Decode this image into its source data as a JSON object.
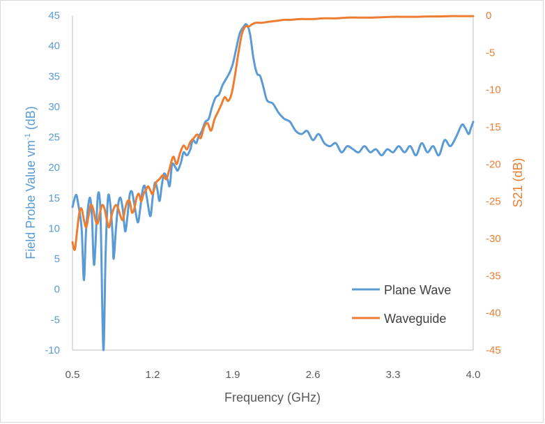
{
  "chart_data": {
    "type": "line",
    "title": "",
    "xlabel": "Frequency (GHz)",
    "ylabel_left": "Field Probe Value vm",
    "ylabel_left_sup": "-1",
    "ylabel_left_suffix": " (dB)",
    "ylabel_right": "S21 (dB)",
    "xlim": [
      0.5,
      4.0
    ],
    "ylim_left": [
      -10,
      45
    ],
    "ylim_right": [
      -45,
      0
    ],
    "x_ticks": [
      "0.5",
      "1.2",
      "1.9",
      "2.6",
      "3.3",
      "4.0"
    ],
    "x_tick_values": [
      0.5,
      1.2,
      1.9,
      2.6,
      3.3,
      4.0
    ],
    "y_left_ticks": [
      45,
      40,
      35,
      30,
      25,
      20,
      15,
      10,
      5,
      0,
      -5,
      -10
    ],
    "y_right_ticks": [
      0,
      -5,
      -10,
      -15,
      -20,
      -25,
      -30,
      -35,
      -40,
      -45
    ],
    "grid": false,
    "legend_position": "bottom-right",
    "colors": {
      "plane_wave": "#5b9bd5",
      "waveguide": "#ed7d31",
      "axis": "#bfbfbf"
    },
    "series": [
      {
        "name": "Plane Wave",
        "axis": "left",
        "x": [
          0.5,
          0.53,
          0.55,
          0.58,
          0.6,
          0.62,
          0.65,
          0.67,
          0.69,
          0.72,
          0.74,
          0.75,
          0.77,
          0.79,
          0.81,
          0.83,
          0.85,
          0.86,
          0.88,
          0.9,
          0.92,
          0.94,
          0.96,
          0.98,
          1.0,
          1.02,
          1.04,
          1.07,
          1.09,
          1.11,
          1.13,
          1.15,
          1.18,
          1.2,
          1.22,
          1.24,
          1.26,
          1.28,
          1.3,
          1.33,
          1.35,
          1.37,
          1.4,
          1.42,
          1.45,
          1.47,
          1.5,
          1.53,
          1.55,
          1.58,
          1.6,
          1.63,
          1.66,
          1.69,
          1.72,
          1.75,
          1.78,
          1.81,
          1.84,
          1.87,
          1.9,
          1.93,
          1.96,
          1.99,
          2.02,
          2.05,
          2.08,
          2.11,
          2.14,
          2.17,
          2.2,
          2.25,
          2.3,
          2.35,
          2.4,
          2.45,
          2.5,
          2.55,
          2.6,
          2.65,
          2.7,
          2.75,
          2.8,
          2.85,
          2.9,
          2.95,
          3.0,
          3.05,
          3.1,
          3.15,
          3.2,
          3.25,
          3.3,
          3.35,
          3.4,
          3.45,
          3.5,
          3.55,
          3.6,
          3.65,
          3.7,
          3.75,
          3.8,
          3.85,
          3.9,
          3.93,
          3.96,
          3.98,
          4.0
        ],
        "values": [
          13.5,
          15.5,
          14.0,
          10.0,
          1.5,
          10.0,
          15.0,
          12.0,
          4.0,
          15.0,
          14.5,
          8.0,
          -10.0,
          6.0,
          15.0,
          14.0,
          9.0,
          5.0,
          10.0,
          14.0,
          15.0,
          13.0,
          9.5,
          12.0,
          15.5,
          16.0,
          14.0,
          11.0,
          13.0,
          16.0,
          17.0,
          15.0,
          12.0,
          15.0,
          17.5,
          16.5,
          14.5,
          17.0,
          19.0,
          18.0,
          17.0,
          20.5,
          20.0,
          19.5,
          21.0,
          22.5,
          22.0,
          23.0,
          24.5,
          24.0,
          25.0,
          26.0,
          27.5,
          28.0,
          30.0,
          31.5,
          32.0,
          33.5,
          34.5,
          35.5,
          37.0,
          39.5,
          42.0,
          43.0,
          43.5,
          42.0,
          38.0,
          35.5,
          35.0,
          33.0,
          31.0,
          30.5,
          29.0,
          28.0,
          27.5,
          26.0,
          25.5,
          26.0,
          24.5,
          25.5,
          24.0,
          23.5,
          24.0,
          22.5,
          23.5,
          23.0,
          22.5,
          23.5,
          22.5,
          23.0,
          22.0,
          23.0,
          22.5,
          23.5,
          22.5,
          23.5,
          22.0,
          24.0,
          22.5,
          23.5,
          22.0,
          24.5,
          23.5,
          25.0,
          27.0,
          26.5,
          25.5,
          26.5,
          27.5
        ]
      },
      {
        "name": "Waveguide",
        "axis": "right",
        "x": [
          0.5,
          0.52,
          0.54,
          0.56,
          0.58,
          0.6,
          0.62,
          0.64,
          0.66,
          0.68,
          0.7,
          0.72,
          0.74,
          0.76,
          0.78,
          0.8,
          0.82,
          0.84,
          0.86,
          0.88,
          0.9,
          0.92,
          0.94,
          0.96,
          0.98,
          1.0,
          1.02,
          1.04,
          1.06,
          1.08,
          1.1,
          1.12,
          1.14,
          1.16,
          1.18,
          1.2,
          1.23,
          1.26,
          1.29,
          1.32,
          1.35,
          1.38,
          1.41,
          1.44,
          1.47,
          1.5,
          1.53,
          1.56,
          1.59,
          1.62,
          1.65,
          1.68,
          1.71,
          1.74,
          1.77,
          1.8,
          1.83,
          1.86,
          1.89,
          1.92,
          1.95,
          1.98,
          2.01,
          2.04,
          2.07,
          2.1,
          2.15,
          2.2,
          2.25,
          2.3,
          2.35,
          2.4,
          2.5,
          2.6,
          2.7,
          2.8,
          2.9,
          3.0,
          3.1,
          3.2,
          3.3,
          3.4,
          3.5,
          3.6,
          3.7,
          3.8,
          3.9,
          4.0
        ],
        "values": [
          -30.5,
          -31.5,
          -29.0,
          -26.5,
          -26.0,
          -27.5,
          -28.5,
          -27.0,
          -25.5,
          -26.0,
          -27.5,
          -28.0,
          -26.5,
          -25.5,
          -26.0,
          -27.5,
          -28.5,
          -27.0,
          -26.0,
          -25.5,
          -26.0,
          -27.0,
          -27.5,
          -26.0,
          -25.0,
          -25.0,
          -26.5,
          -26.0,
          -24.5,
          -24.0,
          -25.0,
          -24.0,
          -23.5,
          -23.0,
          -23.5,
          -24.0,
          -22.5,
          -22.0,
          -21.5,
          -22.0,
          -20.5,
          -19.0,
          -20.0,
          -18.5,
          -17.5,
          -18.0,
          -17.0,
          -16.5,
          -16.0,
          -16.5,
          -15.0,
          -14.5,
          -15.5,
          -14.0,
          -13.0,
          -12.0,
          -11.0,
          -11.5,
          -10.5,
          -8.0,
          -5.0,
          -2.5,
          -1.5,
          -1.5,
          -1.2,
          -1.0,
          -1.0,
          -0.9,
          -0.8,
          -0.7,
          -0.6,
          -0.6,
          -0.5,
          -0.5,
          -0.4,
          -0.4,
          -0.3,
          -0.3,
          -0.3,
          -0.25,
          -0.2,
          -0.2,
          -0.2,
          -0.15,
          -0.15,
          -0.1,
          -0.1,
          -0.1
        ]
      }
    ]
  }
}
